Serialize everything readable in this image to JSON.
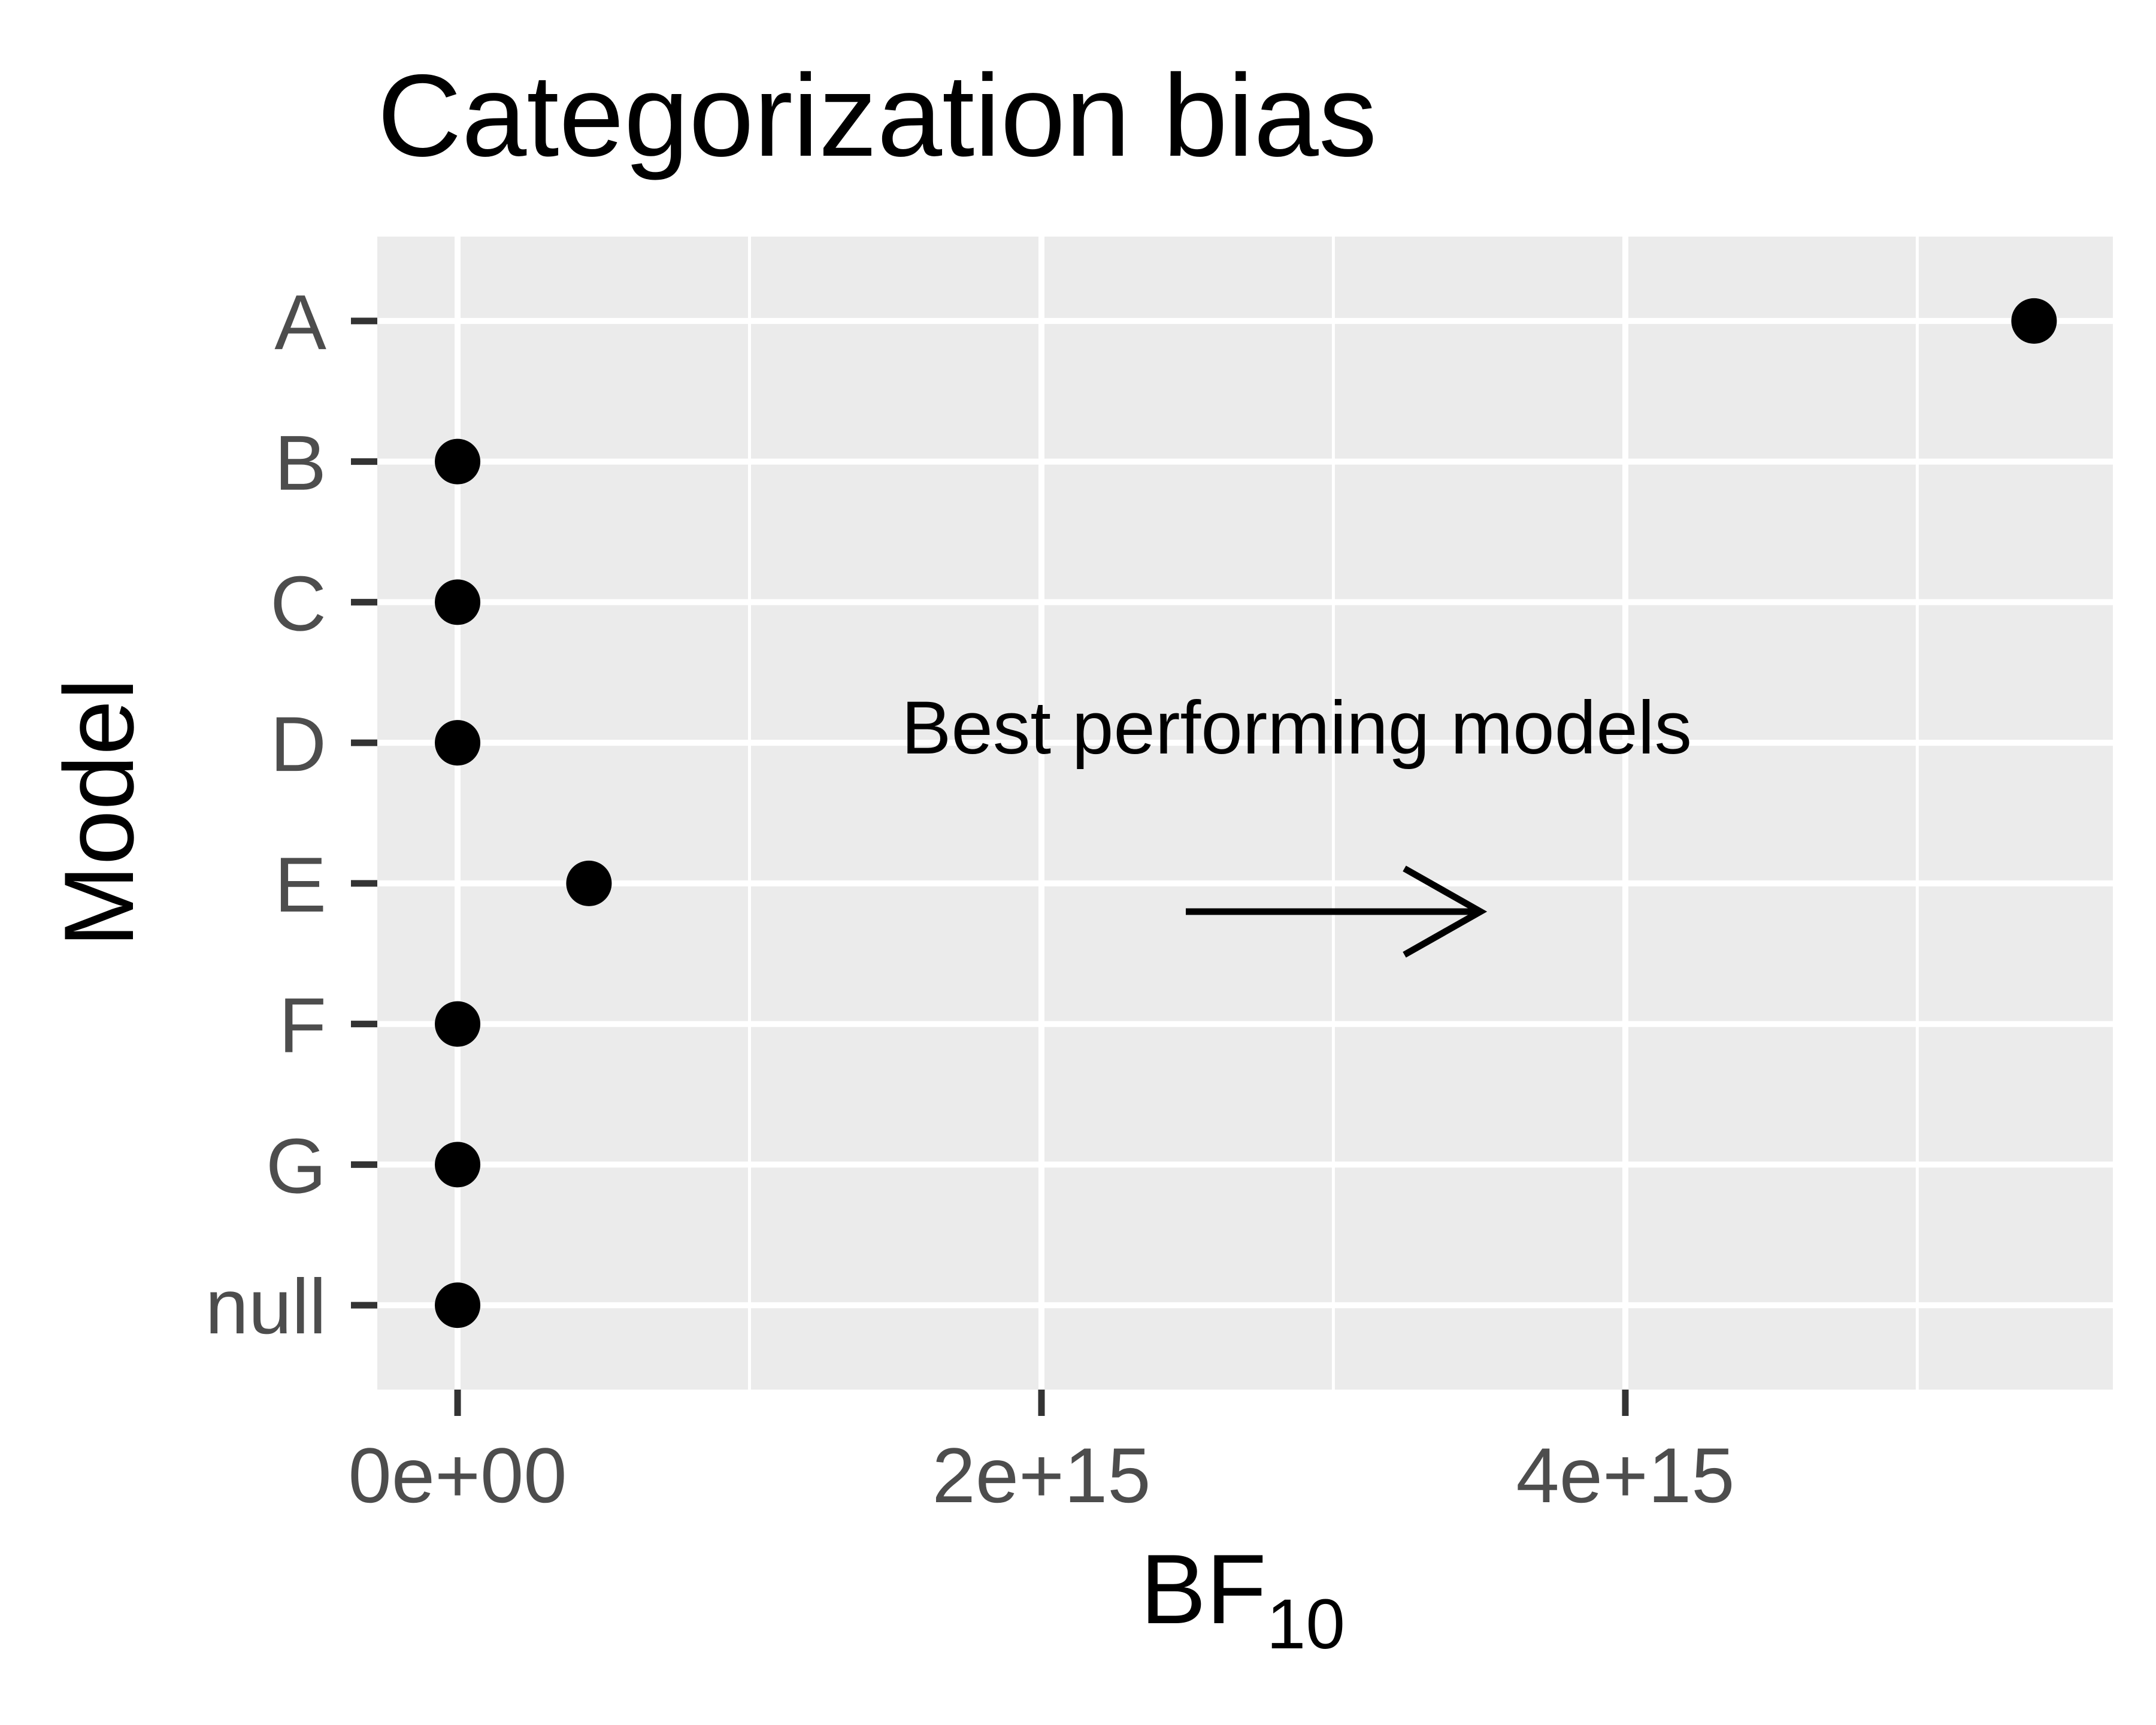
{
  "chart_data": {
    "type": "scatter",
    "title": "Categorization bias",
    "xlabel": "BF",
    "xlabel_subscript": "10",
    "ylabel": "Model",
    "categories": [
      "A",
      "B",
      "C",
      "D",
      "E",
      "F",
      "G",
      "null"
    ],
    "values": [
      5400000000000000.0,
      0,
      0,
      0,
      450000000000000.0,
      0,
      0,
      0
    ],
    "x_ticks": [
      0,
      2000000000000000.0,
      4000000000000000.0
    ],
    "x_tick_labels": [
      "0e+00",
      "2e+15",
      "4e+15"
    ],
    "xlim": [
      -275000000000000.0,
      5670000000000000.0
    ],
    "grid": true,
    "annotation": {
      "text": "Best performing models",
      "arrow": "right"
    },
    "colors": {
      "panel_background": "#EBEBEB",
      "grid": "#FFFFFF",
      "points": "#000000",
      "tick_labels": "#4D4D4D",
      "ticks": "#333333"
    }
  }
}
